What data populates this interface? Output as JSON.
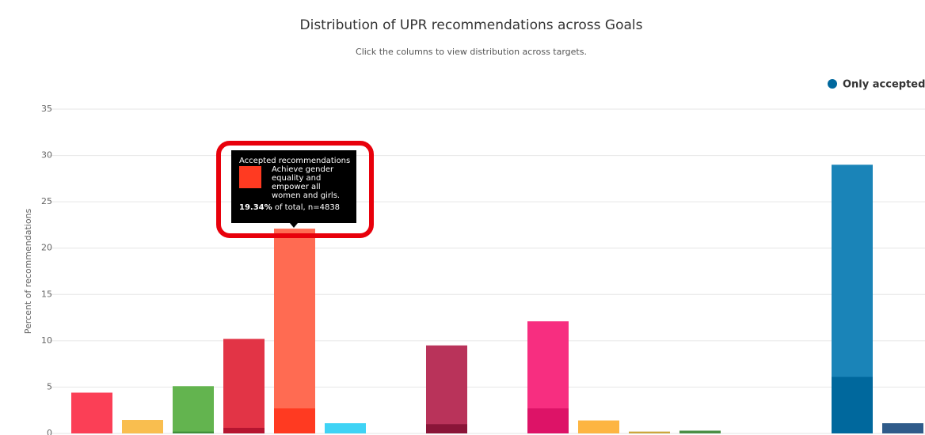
{
  "chart_data": {
    "type": "bar",
    "title": "Distribution of UPR recommendations across Goals",
    "subtitle": "Click the columns to view distribution across targets.",
    "y_label": "Percent of recommendations",
    "ylim": [
      0,
      35
    ],
    "yticks": [
      0,
      5,
      10,
      15,
      20,
      25,
      30,
      35
    ],
    "grid": true,
    "legend": "top-right",
    "series": [
      {
        "colors": [
          "#fb3f56",
          "#f9be4f",
          "#63b44f",
          "#e23446",
          "#ff6b52",
          "#3fd3f5",
          "#fcc30b",
          "#b9335a",
          "#fd6925",
          "#f72e80",
          "#fdb542",
          "#cca63e",
          "#4a8f45",
          "#1c97d4",
          "#56c02b",
          "#1a84b8",
          "#2f5b8a"
        ],
        "values": [
          4.4,
          1.45,
          5.1,
          10.2,
          22.1,
          1.1,
          0,
          9.5,
          0,
          12.1,
          1.4,
          0.2,
          0.3,
          0,
          0,
          29.0,
          1.1
        ]
      },
      {
        "name": "Only accepted",
        "color": "#00689d",
        "colors": [
          "#e5243b",
          "#e5a82f",
          "#3f8f3a",
          "#b51530",
          "#ff3a21",
          "#1ab8e0",
          "#e0ab00",
          "#8a1538",
          "#e0501a",
          "#dd1367",
          "#e89a20",
          "#ad8a28",
          "#3f7e44",
          "#0a77b0",
          "#3aa020",
          "#00689d",
          "#19486a"
        ],
        "values": [
          0,
          0,
          0.2,
          0.6,
          2.7,
          0,
          0,
          1.0,
          0,
          2.7,
          0,
          0,
          0,
          0,
          0,
          6.1,
          0
        ]
      }
    ],
    "tooltip": {
      "heading": "Accepted recommendations",
      "goal": "Achieve gender equality and empower all women and girls.",
      "percent": "19.34%",
      "rest": " of total, n=4838"
    }
  }
}
